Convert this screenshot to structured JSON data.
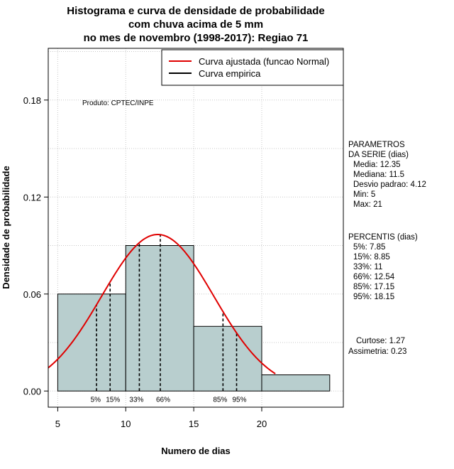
{
  "chart_data": {
    "type": "histogram",
    "title": [
      "Histograma e curva de densidade de probabilidade",
      "com chuva acima de 5 mm",
      "no mes de novembro (1998-2017): Regiao 71"
    ],
    "xlabel": "Numero de dias",
    "ylabel": "Densidade de probabilidade",
    "xlim": [
      4.3,
      26
    ],
    "ylim": [
      -0.01,
      0.212
    ],
    "xticks": [
      5,
      10,
      15,
      20
    ],
    "yticks": [
      0.0,
      0.06,
      0.12,
      0.18
    ],
    "ytick_labels": [
      "0.00",
      "0.06",
      "0.12",
      "0.18"
    ],
    "grid": true,
    "bins": [
      {
        "x0": 5,
        "x1": 10,
        "density": 0.06
      },
      {
        "x0": 10,
        "x1": 15,
        "density": 0.09
      },
      {
        "x0": 15,
        "x1": 20,
        "density": 0.04
      },
      {
        "x0": 20,
        "x1": 25,
        "density": 0.01
      }
    ],
    "bar_fill": "#b8cece",
    "normal_curve": {
      "name": "Curva ajustada (funcao Normal)",
      "mean": 12.35,
      "sd": 4.12,
      "x_range": [
        4.3,
        21
      ],
      "color": "#e00000"
    },
    "empirical_curve": {
      "name": "Curva empirica",
      "color": "#000000"
    },
    "legend_position": "top-right",
    "annotation": "Produto: CPTEC/INPE",
    "percentile_markers": [
      {
        "label": "5%",
        "x": 7.85
      },
      {
        "label": "15%",
        "x": 8.85
      },
      {
        "label": "33%",
        "x": 11
      },
      {
        "label": "66%",
        "x": 12.54
      },
      {
        "label": "85%",
        "x": 17.15
      },
      {
        "label": "95%",
        "x": 18.15
      }
    ],
    "parameters_title": [
      "PARAMETROS",
      "DA SERIE (dias)"
    ],
    "parameters": [
      "Media: 12.35",
      "Mediana: 11.5",
      "Desvio padrao: 4.12",
      "Min: 5",
      "Max: 21"
    ],
    "percentis_title": "PERCENTIS (dias)",
    "percentis": [
      "5%: 7.85",
      "15%: 8.85",
      "33%: 11",
      "66%: 12.54",
      "85%: 17.15",
      "95%: 18.15"
    ],
    "shape_stats": [
      "Curtose: 1.27",
      "Assimetria: 0.23"
    ]
  }
}
